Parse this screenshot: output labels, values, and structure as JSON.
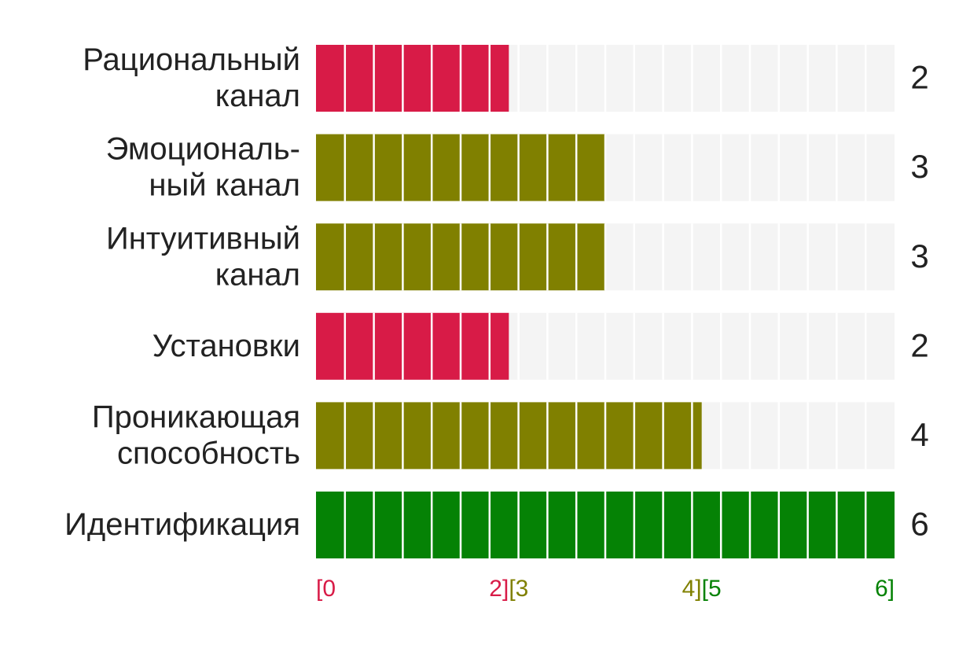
{
  "chart_data": {
    "type": "bar",
    "orientation": "horizontal",
    "categories": [
      [
        "Рациональный",
        "канал"
      ],
      [
        "Эмоциональ-",
        "ный канал"
      ],
      [
        "Интуитивный",
        "канал"
      ],
      [
        "Установки"
      ],
      [
        "Проникающая",
        "способность"
      ],
      [
        "Идентификация"
      ]
    ],
    "values": [
      2,
      3,
      3,
      2,
      4,
      6
    ],
    "xlim": [
      0,
      6
    ],
    "ranges": [
      {
        "start": 0,
        "end": 2,
        "labels": [
          "[0",
          "2]"
        ],
        "color": "#d81b47"
      },
      {
        "start": 2,
        "end": 4,
        "labels": [
          "[3",
          "4]"
        ],
        "color": "#808000"
      },
      {
        "start": 4,
        "end": 6,
        "labels": [
          "[5",
          "6]"
        ],
        "color": "#058205"
      }
    ],
    "track_color": "#f4f4f4"
  }
}
